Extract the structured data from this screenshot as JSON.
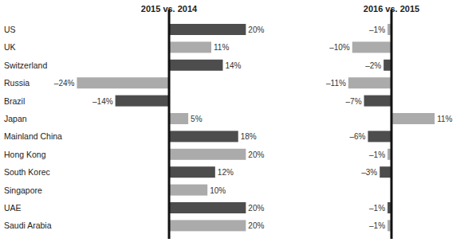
{
  "chart_data": [
    {
      "type": "bar",
      "orientation": "horizontal",
      "title": "2015 vs. 2014",
      "categories": [
        "US",
        "UK",
        "Switzerland",
        "Russia",
        "Brazil",
        "Japan",
        "Mainland China",
        "Hong Kong",
        "South Korec",
        "Singapore",
        "UAE",
        "Saudi Arabia"
      ],
      "values": [
        20,
        11,
        14,
        -24,
        -14,
        5,
        18,
        20,
        12,
        10,
        20,
        20
      ],
      "value_labels": [
        "20%",
        "11%",
        "14%",
        "–24%",
        "–14%",
        "5%",
        "18%",
        "20%",
        "12%",
        "10%",
        "20%",
        "20%"
      ],
      "colors": [
        "#4d4d4d",
        "#ababab",
        "#4d4d4d",
        "#ababab",
        "#4d4d4d",
        "#ababab",
        "#4d4d4d",
        "#ababab",
        "#4d4d4d",
        "#ababab",
        "#4d4d4d",
        "#ababab"
      ],
      "xlim": [
        -27,
        22
      ],
      "data_labels": true,
      "tick_labels": "y",
      "grid": false
    },
    {
      "type": "bar",
      "orientation": "horizontal",
      "title": "2016 vs. 2015",
      "categories": [
        null,
        null,
        null,
        null,
        null,
        null,
        null,
        null,
        null,
        null,
        null,
        null
      ],
      "values": [
        -1,
        -10,
        -2,
        -11,
        -7,
        11,
        -6,
        -1,
        -3,
        null,
        -1,
        -1
      ],
      "value_labels": [
        "–1%",
        "–10%",
        "–2%",
        "–11%",
        "–7%",
        "11%",
        "–6%",
        "–1%",
        "–3%",
        null,
        "–1%",
        "–1%"
      ],
      "colors": [
        "#ababab",
        "#ababab",
        "#4d4d4d",
        "#ababab",
        "#4d4d4d",
        "#ababab",
        "#4d4d4d",
        "#ababab",
        "#4d4d4d",
        "#ababab",
        "#4d4d4d",
        "#ababab"
      ],
      "xlim": [
        -13,
        13
      ],
      "data_labels": true,
      "tick_labels": false,
      "grid": false
    }
  ]
}
